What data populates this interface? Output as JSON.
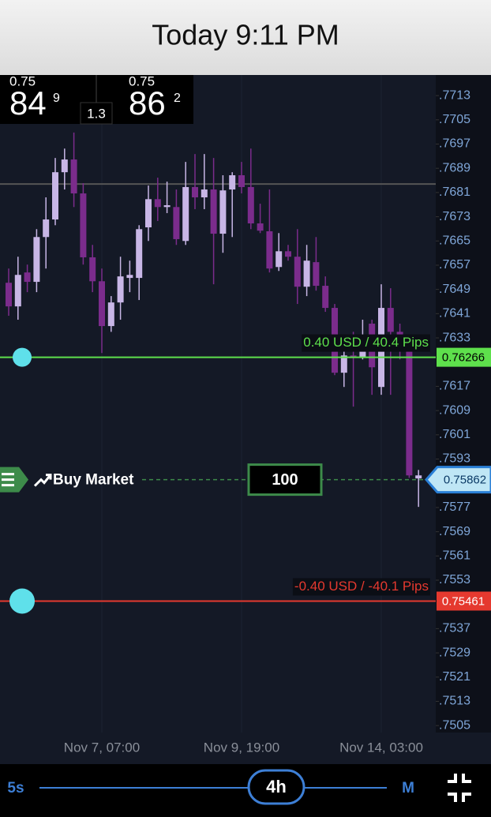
{
  "header": {
    "title": "Today  9:11 PM"
  },
  "quote": {
    "bid": {
      "big_figure": "0.75",
      "pips": "84",
      "fraction": "9"
    },
    "spread": "1.3",
    "ask": {
      "big_figure": "0.75",
      "pips": "86",
      "fraction": "2"
    }
  },
  "chart_data": {
    "type": "candlestick",
    "categories": [
      null,
      null,
      null,
      null,
      null,
      null,
      null,
      null,
      null,
      null,
      "Nov 7, 07:00",
      null,
      null,
      null,
      null,
      null,
      null,
      null,
      null,
      null,
      null,
      null,
      null,
      null,
      null,
      "Nov 9, 19:00",
      null,
      null,
      null,
      null,
      null,
      null,
      null,
      null,
      null,
      null,
      null,
      null,
      null,
      null,
      "Nov 14, 03:00",
      null,
      null,
      null,
      null
    ],
    "open": [
      0.76512,
      0.76434,
      0.76546,
      0.76515,
      0.76663,
      0.76721,
      0.76877,
      0.76919,
      0.76807,
      0.76596,
      0.76517,
      0.76369,
      0.76447,
      0.76528,
      0.76528,
      0.76695,
      0.76788,
      0.76762,
      0.76762,
      0.7665,
      0.76828,
      0.76794,
      0.7682,
      0.76674,
      0.7682,
      0.76867,
      0.76828,
      0.76708,
      0.76682,
      0.76564,
      0.76616,
      0.76598,
      0.76499,
      0.7658,
      0.76502,
      0.76429,
      0.76215,
      0.76272,
      0.76267,
      0.76377,
      0.76168,
      0.76429,
      0.7635,
      0.76285,
      0.75866
    ],
    "high": [
      0.76559,
      0.76598,
      0.76572,
      0.76689,
      0.76794,
      0.76924,
      0.76955,
      0.77008,
      0.76841,
      0.76637,
      0.76559,
      0.76468,
      0.76598,
      0.76585,
      0.76702,
      0.76833,
      0.76859,
      0.76846,
      0.7682,
      0.76911,
      0.76937,
      0.76937,
      0.76924,
      0.76867,
      0.76877,
      0.76911,
      0.76955,
      0.76773,
      0.7682,
      0.76676,
      0.76637,
      0.76689,
      0.76637,
      0.76663,
      0.76533,
      0.76442,
      0.76298,
      0.7635,
      0.7639,
      0.7639,
      0.76507,
      0.76494,
      0.76377,
      0.76311,
      0.75894
    ],
    "low": [
      0.76403,
      0.7639,
      0.76481,
      0.76481,
      0.76559,
      0.76702,
      0.7682,
      0.76762,
      0.76572,
      0.76481,
      0.7628,
      0.7635,
      0.7639,
      0.76481,
      0.76455,
      0.7665,
      0.76716,
      0.76742,
      0.76637,
      0.76637,
      0.76755,
      0.76755,
      0.76507,
      0.76611,
      0.76663,
      0.76807,
      0.76689,
      0.76676,
      0.76546,
      0.76551,
      0.76585,
      0.76442,
      0.76468,
      0.76486,
      0.76416,
      0.76207,
      0.76168,
      0.76103,
      0.76259,
      0.76142,
      0.76142,
      0.76142,
      0.76259,
      0.75868,
      0.75772
    ],
    "close": [
      0.76434,
      0.76538,
      0.76515,
      0.76663,
      0.76721,
      0.76877,
      0.76919,
      0.76807,
      0.76596,
      0.76517,
      0.76369,
      0.76447,
      0.76533,
      0.76538,
      0.76689,
      0.76788,
      0.76762,
      0.76768,
      0.76656,
      0.76828,
      0.76794,
      0.7682,
      0.76674,
      0.76817,
      0.76867,
      0.76828,
      0.76708,
      0.76684,
      0.76559,
      0.76616,
      0.76598,
      0.76499,
      0.76585,
      0.76502,
      0.76429,
      0.76215,
      0.76272,
      0.76267,
      0.76293,
      0.76233,
      0.76429,
      0.7635,
      0.76285,
      0.75876,
      0.75876
    ],
    "up_color": "#c8b6e6",
    "down_color": "#7b2c8c",
    "ylim": [
      0.75027,
      0.77198
    ],
    "yticks": [
      {
        "value": 0.7505,
        "label": ".7505"
      },
      {
        "value": 0.7513,
        "label": ".7513"
      },
      {
        "value": 0.7521,
        "label": ".7521"
      },
      {
        "value": 0.7529,
        "label": ".7529"
      },
      {
        "value": 0.7537,
        "label": ".7537"
      },
      {
        "value": 0.7553,
        "label": ".7553"
      },
      {
        "value": 0.7561,
        "label": ".7561"
      },
      {
        "value": 0.7569,
        "label": ".7569"
      },
      {
        "value": 0.7577,
        "label": ".7577"
      },
      {
        "value": 0.7593,
        "label": ".7593"
      },
      {
        "value": 0.7601,
        "label": ".7601"
      },
      {
        "value": 0.7609,
        "label": ".7609"
      },
      {
        "value": 0.7617,
        "label": ".7617"
      },
      {
        "value": 0.7633,
        "label": ".7633"
      },
      {
        "value": 0.7641,
        "label": ".7641"
      },
      {
        "value": 0.7649,
        "label": ".7649"
      },
      {
        "value": 0.7657,
        "label": ".7657"
      },
      {
        "value": 0.7665,
        "label": ".7665"
      },
      {
        "value": 0.7673,
        "label": ".7673"
      },
      {
        "value": 0.7681,
        "label": ".7681"
      },
      {
        "value": 0.7689,
        "label": ".7689"
      },
      {
        "value": 0.7697,
        "label": ".7697"
      },
      {
        "value": 0.7705,
        "label": ".7705"
      },
      {
        "value": 0.7713,
        "label": ".7713"
      }
    ],
    "high_line": 0.76838,
    "take_profit": {
      "price": 0.76266,
      "label": "0.40 USD / 40.4 Pips",
      "color": "#5ee04c"
    },
    "stop_loss": {
      "price": 0.75461,
      "label": "-0.40 USD / -40.1 Pips",
      "color": "#e5392f"
    },
    "order_line": {
      "price": 0.75862,
      "label": "Buy Market",
      "quantity": "100",
      "color": "#3d8b4a"
    }
  },
  "toolbar": {
    "min": "5s",
    "current": "4h",
    "max": "M"
  }
}
